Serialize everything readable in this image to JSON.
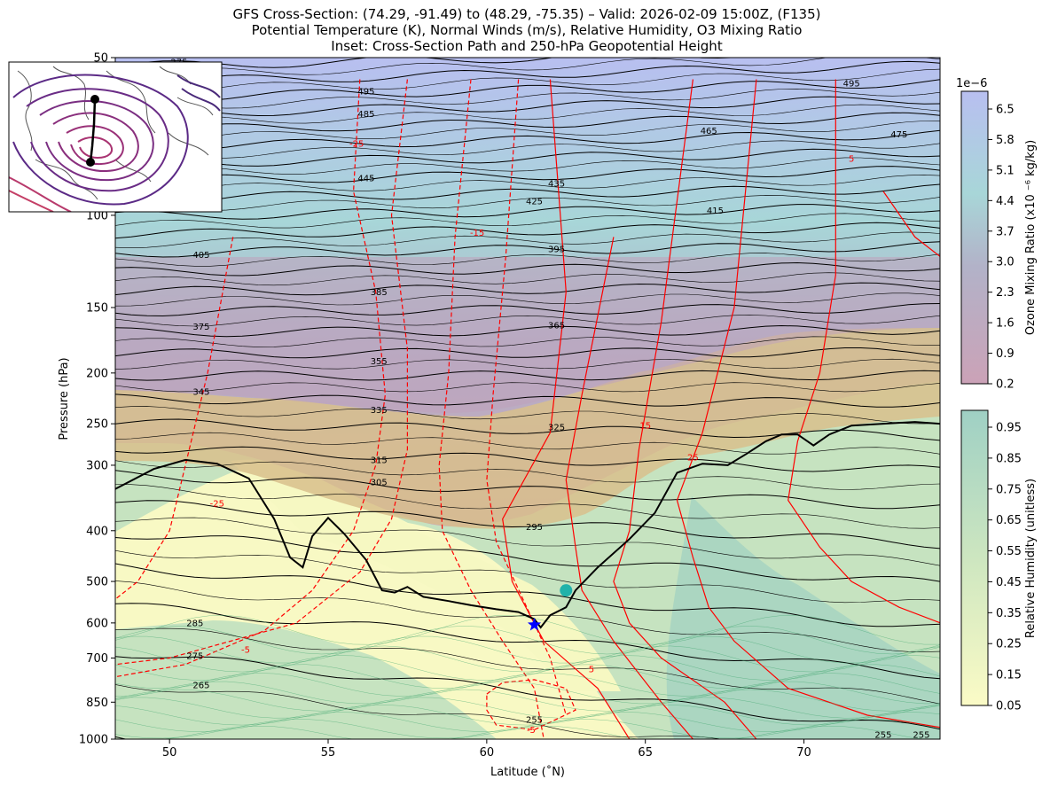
{
  "chart_data": {
    "type": "cross-section",
    "title_lines": [
      "GFS Cross-Section: (74.29, -91.49) to (48.29, -75.35) – Valid: 2026-02-09 15:00Z, (F135)",
      "Potential Temperature (K), Normal Winds (m/s), Relative Humidity, O3 Mixing Ratio",
      "Inset: Cross-Section Path and 250-hPa Geopotential Height"
    ],
    "xlabel": "Latitude (˚N)",
    "ylabel": "Pressure (hPa)",
    "xlim": [
      48.29,
      74.29
    ],
    "ylim": [
      1000,
      50
    ],
    "y_scale": "log",
    "x_ticks": [
      50,
      55,
      60,
      65,
      70
    ],
    "x_tick_labels": [
      "50",
      "55",
      "60",
      "65",
      "70"
    ],
    "y_ticks": [
      1000,
      850,
      700,
      600,
      500,
      400,
      300,
      250,
      200,
      150,
      100,
      50
    ],
    "y_tick_labels": [
      "1000",
      "850",
      "700",
      "600",
      "500",
      "400",
      "300",
      "250",
      "200",
      "150",
      "100",
      "50"
    ],
    "theta_labels": [
      {
        "text": "495",
        "lat": 56.2,
        "p": 58
      },
      {
        "text": "485",
        "lat": 56.2,
        "p": 64
      },
      {
        "text": "495",
        "lat": 71.5,
        "p": 56
      },
      {
        "text": "475",
        "lat": 73.0,
        "p": 70
      },
      {
        "text": "465",
        "lat": 67.0,
        "p": 69
      },
      {
        "text": "445",
        "lat": 56.2,
        "p": 85
      },
      {
        "text": "435",
        "lat": 62.2,
        "p": 87
      },
      {
        "text": "425",
        "lat": 61.5,
        "p": 94
      },
      {
        "text": "415",
        "lat": 67.2,
        "p": 98
      },
      {
        "text": "405",
        "lat": 51.0,
        "p": 119
      },
      {
        "text": "395",
        "lat": 62.2,
        "p": 116
      },
      {
        "text": "385",
        "lat": 56.6,
        "p": 140
      },
      {
        "text": "375",
        "lat": 51.0,
        "p": 163
      },
      {
        "text": "365",
        "lat": 62.2,
        "p": 162
      },
      {
        "text": "355",
        "lat": 56.6,
        "p": 190
      },
      {
        "text": "345",
        "lat": 51.0,
        "p": 217
      },
      {
        "text": "335",
        "lat": 56.6,
        "p": 235
      },
      {
        "text": "325",
        "lat": 62.2,
        "p": 254
      },
      {
        "text": "315",
        "lat": 56.6,
        "p": 293
      },
      {
        "text": "305",
        "lat": 56.6,
        "p": 323
      },
      {
        "text": "295",
        "lat": 61.5,
        "p": 393
      },
      {
        "text": "285",
        "lat": 50.8,
        "p": 600
      },
      {
        "text": "275",
        "lat": 50.8,
        "p": 693
      },
      {
        "text": "265",
        "lat": 51.0,
        "p": 788
      },
      {
        "text": "255",
        "lat": 61.5,
        "p": 917
      },
      {
        "text": "255",
        "lat": 72.5,
        "p": 980
      },
      {
        "text": "255",
        "lat": 73.7,
        "p": 980
      },
      {
        "text": "275",
        "lat": 50.3,
        "p": 51
      }
    ],
    "wind_labels": [
      {
        "text": "-25",
        "lat": 55.9,
        "p": 73
      },
      {
        "text": "-15",
        "lat": 59.7,
        "p": 108
      },
      {
        "text": "-25",
        "lat": 51.5,
        "p": 355
      },
      {
        "text": "-5",
        "lat": 52.4,
        "p": 675
      },
      {
        "text": "15",
        "lat": 65.0,
        "p": 252
      },
      {
        "text": "25",
        "lat": 66.5,
        "p": 290
      },
      {
        "text": "5",
        "lat": 71.5,
        "p": 78
      },
      {
        "text": "5",
        "lat": 63.3,
        "p": 735
      },
      {
        "text": "-5",
        "lat": 61.4,
        "p": 960
      }
    ],
    "tropopause_path": [
      [
        48.29,
        333
      ],
      [
        49.5,
        305
      ],
      [
        50.5,
        293
      ],
      [
        51.5,
        298
      ],
      [
        52.5,
        318
      ],
      [
        53.3,
        380
      ],
      [
        53.8,
        450
      ],
      [
        54.2,
        470
      ],
      [
        54.5,
        410
      ],
      [
        55.0,
        378
      ],
      [
        55.5,
        405
      ],
      [
        56.2,
        455
      ],
      [
        56.7,
        520
      ],
      [
        57.1,
        525
      ],
      [
        57.5,
        512
      ],
      [
        58.0,
        535
      ],
      [
        58.8,
        545
      ],
      [
        59.5,
        555
      ],
      [
        60.3,
        565
      ],
      [
        61.0,
        572
      ],
      [
        61.5,
        590
      ],
      [
        61.7,
        612
      ],
      [
        62.0,
        580
      ],
      [
        62.5,
        560
      ],
      [
        62.8,
        520
      ],
      [
        63.5,
        470
      ],
      [
        64.5,
        415
      ],
      [
        65.3,
        370
      ],
      [
        66.0,
        310
      ],
      [
        66.8,
        298
      ],
      [
        67.6,
        300
      ],
      [
        68.2,
        285
      ],
      [
        68.8,
        270
      ],
      [
        69.3,
        262
      ],
      [
        69.8,
        262
      ],
      [
        70.3,
        275
      ],
      [
        70.8,
        262
      ],
      [
        71.5,
        252
      ],
      [
        72.5,
        250
      ],
      [
        73.5,
        248
      ],
      [
        74.29,
        250
      ]
    ],
    "markers": [
      {
        "shape": "circle",
        "color": "#20b2aa",
        "lat": 62.5,
        "p": 520
      },
      {
        "shape": "star",
        "color": "#0000ff",
        "lat": 61.5,
        "p": 605
      }
    ],
    "colorbars": [
      {
        "label": "Ozone Mixing Ratio (x10 ⁻⁶ kg/kg)",
        "exponent": "1e−6",
        "ticks": [
          "6.5",
          "5.8",
          "5.1",
          "4.4",
          "3.7",
          "3.0",
          "2.3",
          "1.6",
          "0.9",
          "0.2"
        ]
      },
      {
        "label": "Relative Humidity (unitless)",
        "ticks": [
          "0.95",
          "0.85",
          "0.75",
          "0.65",
          "0.55",
          "0.45",
          "0.35",
          "0.25",
          "0.15",
          "0.05"
        ]
      }
    ],
    "colors": {
      "theta": "#000000",
      "wind": "#ff0000",
      "tropopause": "#000000",
      "ozone_low": "#c9a0b7",
      "ozone_high": "#b8bff0",
      "rh_low": "#fbfbc6",
      "rh_high": "#9fd0c4",
      "inset_contours": "#5b2a86"
    }
  }
}
